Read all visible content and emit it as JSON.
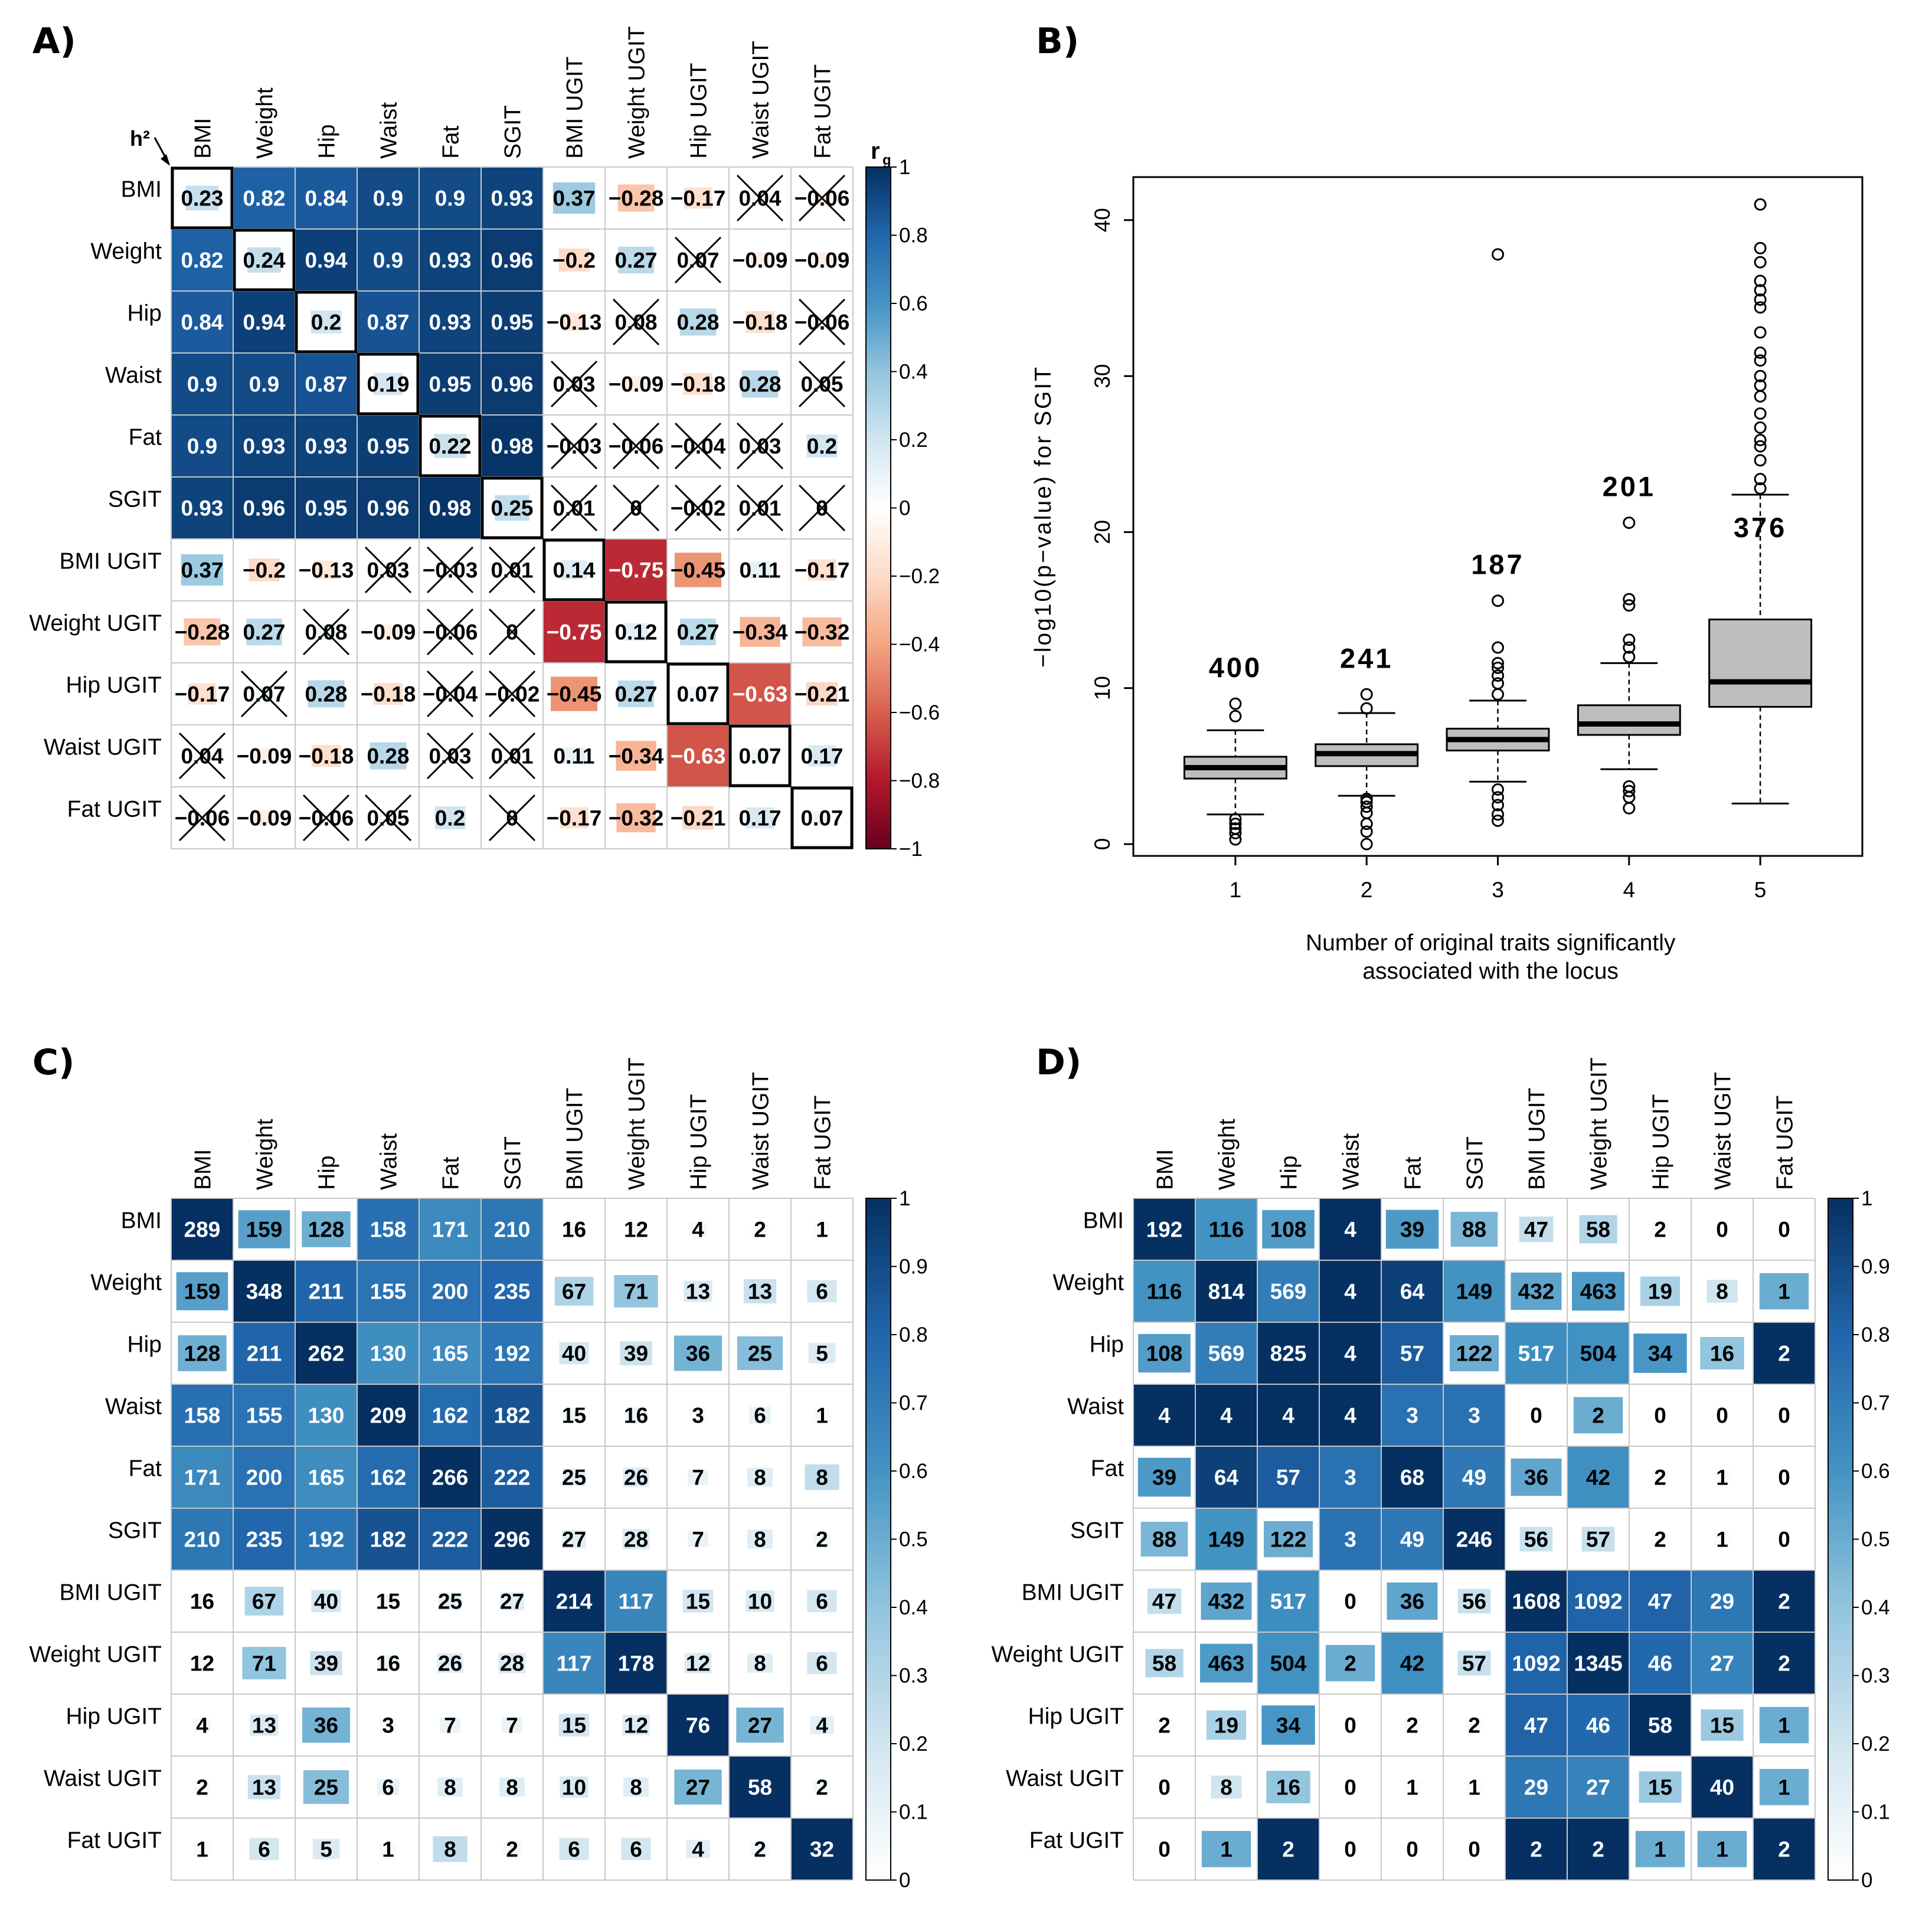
{
  "panels": {
    "A": {
      "letter": "A)"
    },
    "B": {
      "letter": "B)"
    },
    "C": {
      "letter": "C)"
    },
    "D": {
      "letter": "D)"
    }
  },
  "colors": {
    "dark_blue": "#053061",
    "white": "#ffffff",
    "dark_red": "#67001f",
    "box_fill": "#bebebe",
    "grid": "#c8c8c8"
  },
  "chart_data": [
    {
      "id": "A",
      "type": "heatmap",
      "title": "",
      "corner_label": "h²",
      "legend_title": "rg",
      "labels": [
        "BMI",
        "Weight",
        "Hip",
        "Waist",
        "Fat",
        "SGIT",
        "BMI UGIT",
        "Weight UGIT",
        "Hip UGIT",
        "Waist UGIT",
        "Fat UGIT"
      ],
      "scale": {
        "min": -1,
        "max": 1,
        "palette": "RdBu"
      },
      "legend_ticks": [
        "1",
        "0.8",
        "0.6",
        "0.4",
        "0.2",
        "0",
        "−0.2",
        "−0.4",
        "−0.6",
        "−0.8",
        "−1"
      ],
      "values": [
        [
          0.23,
          0.82,
          0.84,
          0.9,
          0.9,
          0.93,
          0.37,
          -0.28,
          -0.17,
          0.04,
          -0.06
        ],
        [
          0.82,
          0.24,
          0.94,
          0.9,
          0.93,
          0.96,
          -0.2,
          0.27,
          0.07,
          -0.09,
          -0.09
        ],
        [
          0.84,
          0.94,
          0.2,
          0.87,
          0.93,
          0.95,
          -0.13,
          0.08,
          0.28,
          -0.18,
          -0.06
        ],
        [
          0.9,
          0.9,
          0.87,
          0.19,
          0.95,
          0.96,
          0.03,
          -0.09,
          -0.18,
          0.28,
          0.05
        ],
        [
          0.9,
          0.93,
          0.93,
          0.95,
          0.22,
          0.98,
          -0.03,
          -0.06,
          -0.04,
          0.03,
          0.2
        ],
        [
          0.93,
          0.96,
          0.95,
          0.96,
          0.98,
          0.25,
          0.01,
          0,
          -0.02,
          0.01,
          0
        ],
        [
          0.37,
          -0.2,
          -0.13,
          0.03,
          -0.03,
          0.01,
          0.14,
          -0.75,
          -0.45,
          0.11,
          -0.17
        ],
        [
          -0.28,
          0.27,
          0.08,
          -0.09,
          -0.06,
          0,
          -0.75,
          0.12,
          0.27,
          -0.34,
          -0.32
        ],
        [
          -0.17,
          0.07,
          0.28,
          -0.18,
          -0.04,
          -0.02,
          -0.45,
          0.27,
          0.07,
          -0.63,
          -0.21
        ],
        [
          0.04,
          -0.09,
          -0.18,
          0.28,
          0.03,
          0.01,
          0.11,
          -0.34,
          -0.63,
          0.07,
          0.17
        ],
        [
          -0.06,
          -0.09,
          -0.06,
          0.05,
          0.2,
          0,
          -0.17,
          -0.32,
          -0.21,
          0.17,
          0.07
        ]
      ],
      "crossed": [
        [
          0,
          9
        ],
        [
          0,
          10
        ],
        [
          1,
          8
        ],
        [
          2,
          7
        ],
        [
          2,
          10
        ],
        [
          3,
          6
        ],
        [
          3,
          10
        ],
        [
          4,
          6
        ],
        [
          4,
          7
        ],
        [
          4,
          8
        ],
        [
          4,
          9
        ],
        [
          5,
          6
        ],
        [
          5,
          7
        ],
        [
          5,
          8
        ],
        [
          5,
          9
        ],
        [
          5,
          10
        ],
        [
          6,
          3
        ],
        [
          6,
          4
        ],
        [
          6,
          5
        ],
        [
          7,
          2
        ],
        [
          7,
          4
        ],
        [
          7,
          5
        ],
        [
          8,
          1
        ],
        [
          8,
          4
        ],
        [
          8,
          5
        ],
        [
          9,
          0
        ],
        [
          9,
          4
        ],
        [
          9,
          5
        ],
        [
          10,
          0
        ],
        [
          10,
          2
        ],
        [
          10,
          3
        ],
        [
          10,
          5
        ]
      ]
    },
    {
      "id": "B",
      "type": "box",
      "title": "",
      "xlabel": "Number of original traits significantly associated with the locus",
      "xlabel_lines": [
        "Number of original traits significantly",
        "associated with the locus"
      ],
      "ylabel": "−log10(p−value) for SGIT",
      "categories": [
        "1",
        "2",
        "3",
        "4",
        "5"
      ],
      "ylim": [
        0,
        42
      ],
      "yticks": [
        "0",
        "10",
        "20",
        "30",
        "40"
      ],
      "counts": [
        "400",
        "241",
        "187",
        "201",
        "376"
      ],
      "boxes": [
        {
          "q1": 4.2,
          "median": 4.9,
          "q3": 5.6,
          "whisker_low": 1.9,
          "whisker_high": 7.3,
          "outliers": [
            0.3,
            0.7,
            1.0,
            1.3,
            1.6,
            8.2,
            9.0
          ]
        },
        {
          "q1": 5.0,
          "median": 5.8,
          "q3": 6.4,
          "whisker_low": 3.1,
          "whisker_high": 8.4,
          "outliers": [
            0.0,
            0.8,
            1.3,
            2.0,
            2.4,
            2.7,
            2.9,
            8.7,
            9.6
          ]
        },
        {
          "q1": 6.0,
          "median": 6.7,
          "q3": 7.4,
          "whisker_low": 4.0,
          "whisker_high": 9.2,
          "outliers": [
            1.5,
            1.9,
            2.5,
            3.0,
            3.5,
            9.6,
            10.3,
            10.8,
            11.3,
            11.6,
            12.6,
            15.6,
            37.8
          ]
        },
        {
          "q1": 7.0,
          "median": 7.7,
          "q3": 8.9,
          "whisker_low": 4.8,
          "whisker_high": 11.6,
          "outliers": [
            2.3,
            3.0,
            3.4,
            3.7,
            12.0,
            12.6,
            13.1,
            15.3,
            15.7,
            20.6
          ]
        },
        {
          "q1": 8.8,
          "median": 10.4,
          "q3": 14.4,
          "whisker_low": 2.6,
          "whisker_high": 22.4,
          "outliers": [
            22.8,
            23.4,
            24.6,
            25.5,
            25.9,
            26.7,
            27.6,
            28.7,
            29.4,
            30.0,
            31.0,
            31.5,
            32.8,
            34.4,
            34.9,
            35.5,
            36.1,
            37.3,
            38.2,
            41.0
          ]
        }
      ]
    },
    {
      "id": "C",
      "type": "heatmap",
      "title": "",
      "labels": [
        "BMI",
        "Weight",
        "Hip",
        "Waist",
        "Fat",
        "SGIT",
        "BMI UGIT",
        "Weight UGIT",
        "Hip UGIT",
        "Waist UGIT",
        "Fat UGIT"
      ],
      "scale": {
        "min": 0,
        "max": 1,
        "palette": "Blues"
      },
      "legend_ticks": [
        "1",
        "0.9",
        "0.8",
        "0.7",
        "0.6",
        "0.5",
        "0.4",
        "0.3",
        "0.2",
        "0.1",
        "0"
      ],
      "values": [
        [
          289,
          159,
          128,
          158,
          171,
          210,
          16,
          12,
          4,
          2,
          1
        ],
        [
          159,
          348,
          211,
          155,
          200,
          235,
          67,
          71,
          13,
          13,
          6
        ],
        [
          128,
          211,
          262,
          130,
          165,
          192,
          40,
          39,
          36,
          25,
          5
        ],
        [
          158,
          155,
          130,
          209,
          162,
          182,
          15,
          16,
          3,
          6,
          1
        ],
        [
          171,
          200,
          165,
          162,
          266,
          222,
          25,
          26,
          7,
          8,
          8
        ],
        [
          210,
          235,
          192,
          182,
          222,
          296,
          27,
          28,
          7,
          8,
          2
        ],
        [
          16,
          67,
          40,
          15,
          25,
          27,
          214,
          117,
          15,
          10,
          6
        ],
        [
          12,
          71,
          39,
          16,
          26,
          28,
          117,
          178,
          12,
          8,
          6
        ],
        [
          4,
          13,
          36,
          3,
          7,
          7,
          15,
          12,
          76,
          27,
          4
        ],
        [
          2,
          13,
          25,
          6,
          8,
          8,
          10,
          8,
          27,
          58,
          2
        ],
        [
          1,
          6,
          5,
          1,
          8,
          2,
          6,
          6,
          4,
          2,
          32
        ]
      ]
    },
    {
      "id": "D",
      "type": "heatmap",
      "title": "",
      "labels": [
        "BMI",
        "Weight",
        "Hip",
        "Waist",
        "Fat",
        "SGIT",
        "BMI UGIT",
        "Weight UGIT",
        "Hip UGIT",
        "Waist UGIT",
        "Fat UGIT"
      ],
      "scale": {
        "min": 0,
        "max": 1,
        "palette": "Blues"
      },
      "legend_ticks": [
        "1",
        "0.9",
        "0.8",
        "0.7",
        "0.6",
        "0.5",
        "0.4",
        "0.3",
        "0.2",
        "0.1",
        "0"
      ],
      "values": [
        [
          192,
          116,
          108,
          4,
          39,
          88,
          47,
          58,
          2,
          0,
          0
        ],
        [
          116,
          814,
          569,
          4,
          64,
          149,
          432,
          463,
          19,
          8,
          1
        ],
        [
          108,
          569,
          825,
          4,
          57,
          122,
          517,
          504,
          34,
          16,
          2
        ],
        [
          4,
          4,
          4,
          4,
          3,
          3,
          0,
          2,
          0,
          0,
          0
        ],
        [
          39,
          64,
          57,
          3,
          68,
          49,
          36,
          42,
          2,
          1,
          0
        ],
        [
          88,
          149,
          122,
          3,
          49,
          246,
          56,
          57,
          2,
          1,
          0
        ],
        [
          47,
          432,
          517,
          0,
          36,
          56,
          1608,
          1092,
          47,
          29,
          2
        ],
        [
          58,
          463,
          504,
          2,
          42,
          57,
          1092,
          1345,
          46,
          27,
          2
        ],
        [
          2,
          19,
          34,
          0,
          2,
          2,
          47,
          46,
          58,
          15,
          1
        ],
        [
          0,
          8,
          16,
          0,
          1,
          1,
          29,
          27,
          15,
          40,
          1
        ],
        [
          0,
          1,
          2,
          0,
          0,
          0,
          2,
          2,
          1,
          1,
          2
        ]
      ]
    }
  ]
}
